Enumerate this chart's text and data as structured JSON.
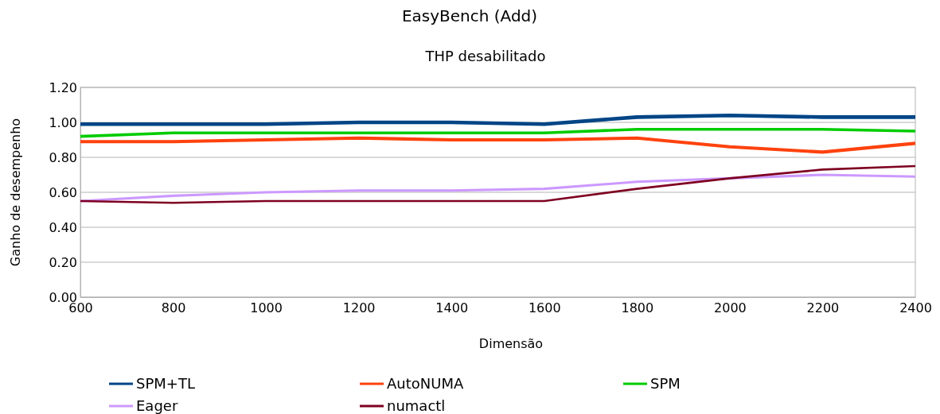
{
  "chart_data": {
    "type": "line",
    "title": "EasyBench (Add)",
    "subtitle": "THP desabilitado",
    "xlabel": "Dimensão",
    "ylabel": "Ganho de desempenho",
    "x": [
      600,
      800,
      1000,
      1200,
      1400,
      1600,
      1800,
      2000,
      2200,
      2400
    ],
    "xlim": [
      600,
      2400
    ],
    "xticks": [
      600,
      800,
      1000,
      1200,
      1400,
      1600,
      1800,
      2000,
      2200,
      2400
    ],
    "ylim": [
      0,
      1.2
    ],
    "yticks": [
      {
        "value": 0,
        "label": "0.00"
      },
      {
        "value": 0.2,
        "label": "0.20"
      },
      {
        "value": 0.4,
        "label": "0.40"
      },
      {
        "value": 0.6,
        "label": "0.60"
      },
      {
        "value": 0.8,
        "label": "0.80"
      },
      {
        "value": 1,
        "label": "1.00"
      },
      {
        "value": 1.2,
        "label": "1.20"
      }
    ],
    "grid": "y",
    "legend": "bottom",
    "marker": "none",
    "line_style": "solid",
    "series": [
      {
        "name": "SPM+TL",
        "color": "#004586",
        "values": [
          0.99,
          0.99,
          0.99,
          1.0,
          1.0,
          0.99,
          1.03,
          1.04,
          1.03,
          1.03
        ]
      },
      {
        "name": "AutoNUMA",
        "color": "#ff420e",
        "values": [
          0.89,
          0.89,
          0.9,
          0.91,
          0.9,
          0.9,
          0.91,
          0.86,
          0.83,
          0.88
        ]
      },
      {
        "name": "SPM",
        "color": "#00cc00",
        "values": [
          0.92,
          0.94,
          0.94,
          0.94,
          0.94,
          0.94,
          0.96,
          0.96,
          0.96,
          0.95
        ]
      },
      {
        "name": "Eager",
        "color": "#cc99ff",
        "values": [
          0.55,
          0.58,
          0.6,
          0.61,
          0.61,
          0.62,
          0.66,
          0.68,
          0.7,
          0.69
        ]
      },
      {
        "name": "numactl",
        "color": "#7e0021",
        "values": [
          0.55,
          0.54,
          0.55,
          0.55,
          0.55,
          0.55,
          0.62,
          0.68,
          0.73,
          0.75
        ]
      }
    ]
  }
}
